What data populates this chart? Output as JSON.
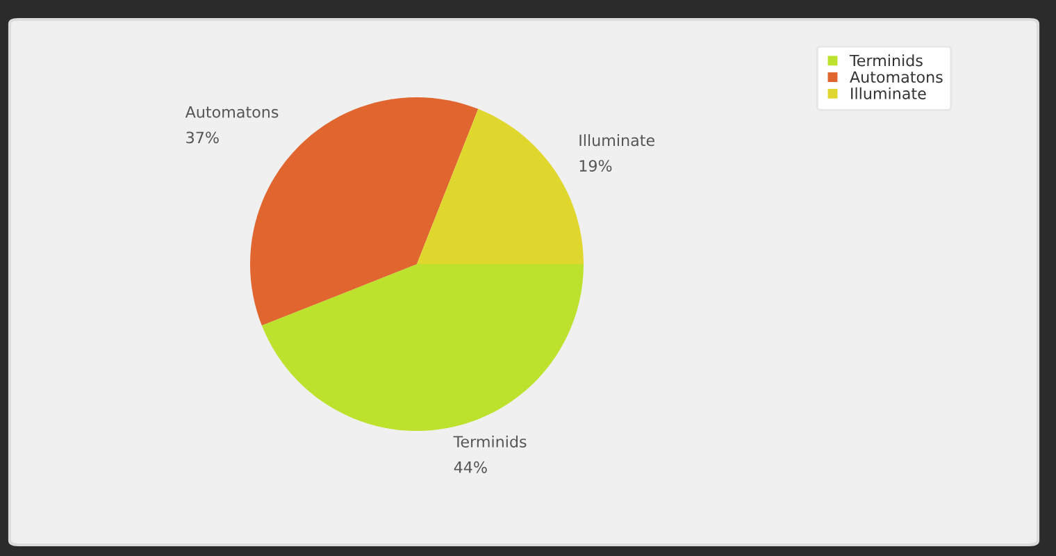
{
  "chart_data": {
    "type": "pie",
    "categories": [
      "Terminids",
      "Automatons",
      "Illuminate"
    ],
    "values": [
      44,
      37,
      19
    ],
    "value_labels": [
      "44%",
      "37%",
      "19%"
    ],
    "colors": [
      "#bde22d",
      "#e0652e",
      "#e0d72e"
    ],
    "legend": "top right"
  }
}
